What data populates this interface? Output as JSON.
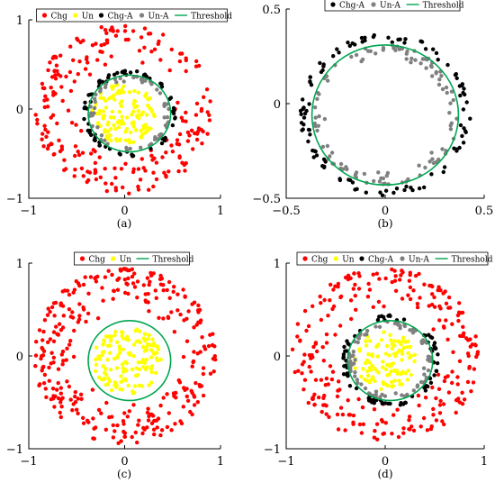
{
  "colors": {
    "Chg": "#ff0000",
    "Un": "#ffff00",
    "Chg-A": "#000000",
    "Un-A": "#808080",
    "Threshold": "#00a550"
  },
  "chart_data": [
    {
      "type": "scatter",
      "label": "(a)",
      "xlim": [
        -1,
        1
      ],
      "ylim": [
        -1,
        1
      ],
      "xticks": [
        "−1",
        "0",
        "1"
      ],
      "yticks": [
        "−1",
        "0",
        "1"
      ],
      "grid": false,
      "legend_position": "top",
      "legend": [
        "Chg",
        "Un",
        "Chg-A",
        "Un-A",
        "Threshold"
      ],
      "threshold": {
        "center": [
          0.05,
          -0.05
        ],
        "radius": 0.43
      },
      "series": [
        {
          "name": "Chg",
          "shape": "annulus",
          "center": [
            0,
            0
          ],
          "r_min": 0.5,
          "r_max": 0.95,
          "count": 230
        },
        {
          "name": "Un",
          "shape": "disc",
          "center": [
            0,
            -0.05
          ],
          "r_min": 0,
          "r_max": 0.34,
          "count": 120
        },
        {
          "name": "Chg-A",
          "shape": "ring",
          "center": [
            0.05,
            -0.05
          ],
          "r_min": 0.42,
          "r_max": 0.48,
          "count": 70
        },
        {
          "name": "Un-A",
          "shape": "ring",
          "center": [
            0.05,
            -0.05
          ],
          "r_min": 0.36,
          "r_max": 0.42,
          "count": 60
        }
      ]
    },
    {
      "type": "scatter",
      "label": "(b)",
      "xlim": [
        -0.5,
        0.5
      ],
      "ylim": [
        -0.5,
        0.5
      ],
      "xticks": [
        "−0.5",
        "0",
        "0.5"
      ],
      "yticks": [
        "−0.5",
        "0",
        "0.5"
      ],
      "grid": false,
      "legend_position": "top",
      "legend": [
        "Chg-A",
        "Un-A",
        "Threshold"
      ],
      "threshold": {
        "center": [
          0,
          -0.06
        ],
        "radius": 0.37
      },
      "series": [
        {
          "name": "Chg-A",
          "shape": "ring",
          "center": [
            0,
            -0.06
          ],
          "r_min": 0.38,
          "r_max": 0.43,
          "count": 110
        },
        {
          "name": "Un-A",
          "shape": "ring",
          "center": [
            0,
            -0.06
          ],
          "r_min": 0.3,
          "r_max": 0.37,
          "count": 110
        }
      ]
    },
    {
      "type": "scatter",
      "label": "(c)",
      "xlim": [
        -1,
        1
      ],
      "ylim": [
        -1,
        1
      ],
      "xticks": [
        "−1",
        "0",
        "1"
      ],
      "yticks": [
        "−1",
        "0",
        "1"
      ],
      "grid": false,
      "legend_position": "top",
      "legend": [
        "Chg",
        "Un",
        "Threshold"
      ],
      "threshold": {
        "center": [
          0.05,
          -0.05
        ],
        "radius": 0.43
      },
      "series": [
        {
          "name": "Chg",
          "shape": "annulus",
          "center": [
            0,
            0
          ],
          "r_min": 0.48,
          "r_max": 0.95,
          "count": 320
        },
        {
          "name": "Un",
          "shape": "disc",
          "center": [
            0.03,
            -0.05
          ],
          "r_min": 0,
          "r_max": 0.36,
          "count": 140
        }
      ]
    },
    {
      "type": "scatter",
      "label": "(d)",
      "xlim": [
        -1,
        1
      ],
      "ylim": [
        -1,
        1
      ],
      "xticks": [
        "−1",
        "0",
        "1"
      ],
      "yticks": [
        "−1",
        "0",
        "1"
      ],
      "grid": false,
      "legend_position": "top",
      "legend": [
        "Chg",
        "Un",
        "Chg-A",
        "Un-A",
        "Threshold"
      ],
      "threshold": {
        "center": [
          0.05,
          -0.05
        ],
        "radius": 0.43
      },
      "series": [
        {
          "name": "Chg",
          "shape": "annulus",
          "center": [
            0,
            0
          ],
          "r_min": 0.5,
          "r_max": 0.95,
          "count": 260
        },
        {
          "name": "Un",
          "shape": "disc",
          "center": [
            0,
            -0.05
          ],
          "r_min": 0,
          "r_max": 0.32,
          "count": 110
        },
        {
          "name": "Chg-A",
          "shape": "ring",
          "center": [
            0.05,
            -0.05
          ],
          "r_min": 0.42,
          "r_max": 0.49,
          "count": 80
        },
        {
          "name": "Un-A",
          "shape": "ring",
          "center": [
            0.05,
            -0.05
          ],
          "r_min": 0.35,
          "r_max": 0.42,
          "count": 80
        }
      ]
    }
  ]
}
